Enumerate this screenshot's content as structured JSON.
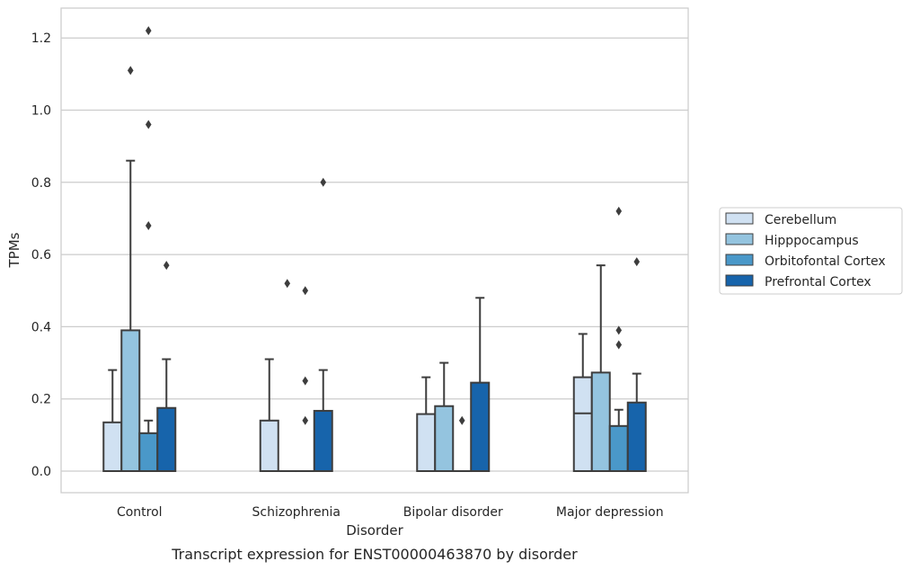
{
  "chart_data": {
    "type": "box",
    "title": "Transcript expression for ENST00000463870 by disorder",
    "xlabel": "Disorder",
    "ylabel": "TPMs",
    "ylim": [
      -0.06,
      1.28
    ],
    "yticks": [
      0.0,
      0.2,
      0.4,
      0.6,
      0.8,
      1.0,
      1.2
    ],
    "ytick_labels": [
      "0.0",
      "0.2",
      "0.4",
      "0.6",
      "0.8",
      "1.0",
      "1.2"
    ],
    "categories": [
      "Control",
      "Schizophrenia",
      "Bipolar disorder",
      "Major depression"
    ],
    "grid": true,
    "legend_position": "right",
    "series": [
      {
        "name": "Cerebellum",
        "color": "#d0e1f2",
        "boxes": [
          {
            "q1": 0.0,
            "median": 0.0,
            "q3": 0.135,
            "whisker_low": 0.0,
            "whisker_high": 0.28,
            "outliers": []
          },
          {
            "q1": 0.0,
            "median": 0.0,
            "q3": 0.14,
            "whisker_low": 0.0,
            "whisker_high": 0.31,
            "outliers": []
          },
          {
            "q1": 0.0,
            "median": 0.0,
            "q3": 0.158,
            "whisker_low": 0.0,
            "whisker_high": 0.26,
            "outliers": []
          },
          {
            "q1": 0.0,
            "median": 0.16,
            "q3": 0.26,
            "whisker_low": 0.0,
            "whisker_high": 0.38,
            "outliers": []
          }
        ]
      },
      {
        "name": "Hipppocampus",
        "color": "#94c4df",
        "boxes": [
          {
            "q1": 0.0,
            "median": 0.0,
            "q3": 0.39,
            "whisker_low": 0.0,
            "whisker_high": 0.86,
            "outliers": [
              1.11
            ]
          },
          {
            "q1": 0.0,
            "median": 0.0,
            "q3": 0.0,
            "whisker_low": 0.0,
            "whisker_high": 0.0,
            "outliers": [
              0.52
            ]
          },
          {
            "q1": 0.0,
            "median": 0.0,
            "q3": 0.18,
            "whisker_low": 0.0,
            "whisker_high": 0.3,
            "outliers": []
          },
          {
            "q1": 0.0,
            "median": 0.0,
            "q3": 0.273,
            "whisker_low": 0.0,
            "whisker_high": 0.57,
            "outliers": []
          }
        ]
      },
      {
        "name": "Orbitofontal Cortex",
        "color": "#4a98c9",
        "boxes": [
          {
            "q1": 0.0,
            "median": 0.0,
            "q3": 0.105,
            "whisker_low": 0.0,
            "whisker_high": 0.14,
            "outliers": [
              1.22,
              0.96,
              0.68
            ]
          },
          {
            "q1": 0.0,
            "median": 0.0,
            "q3": 0.0,
            "whisker_low": 0.0,
            "whisker_high": 0.0,
            "outliers": [
              0.5,
              0.25,
              0.14
            ]
          },
          {
            "q1": 0.0,
            "median": 0.0,
            "q3": 0.0,
            "whisker_low": 0.0,
            "whisker_high": 0.0,
            "outliers": [
              0.14
            ]
          },
          {
            "q1": 0.0,
            "median": 0.0,
            "q3": 0.125,
            "whisker_low": 0.0,
            "whisker_high": 0.17,
            "outliers": [
              0.72,
              0.39,
              0.35
            ]
          }
        ]
      },
      {
        "name": "Prefrontal Cortex",
        "color": "#1764ab",
        "boxes": [
          {
            "q1": 0.0,
            "median": 0.0,
            "q3": 0.175,
            "whisker_low": 0.0,
            "whisker_high": 0.31,
            "outliers": [
              0.57
            ]
          },
          {
            "q1": 0.0,
            "median": 0.0,
            "q3": 0.167,
            "whisker_low": 0.0,
            "whisker_high": 0.28,
            "outliers": [
              0.8
            ]
          },
          {
            "q1": 0.0,
            "median": 0.0,
            "q3": 0.245,
            "whisker_low": 0.0,
            "whisker_high": 0.48,
            "outliers": []
          },
          {
            "q1": 0.0,
            "median": 0.0,
            "q3": 0.19,
            "whisker_low": 0.0,
            "whisker_high": 0.27,
            "outliers": [
              0.58
            ]
          }
        ]
      }
    ]
  }
}
